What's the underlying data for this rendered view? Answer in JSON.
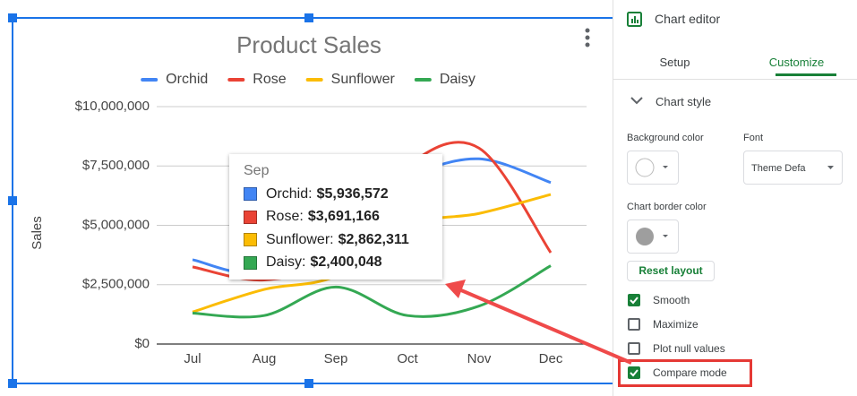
{
  "chart_data": {
    "type": "line",
    "title": "Product Sales",
    "y_label": "Sales",
    "smooth": true,
    "grid": true,
    "legend": "top",
    "categories": [
      "Jul",
      "Aug",
      "Sep",
      "Oct",
      "Nov",
      "Dec"
    ],
    "series": [
      {
        "name": "Orchid",
        "color": "#4285f4",
        "values": [
          3550000,
          3100000,
          5936572,
          7100000,
          7800000,
          6800000
        ],
        "value_labels": [
          null,
          null,
          "$5,936,572",
          null,
          null,
          null
        ]
      },
      {
        "name": "Rose",
        "color": "#ea4335",
        "values": [
          3250000,
          2700000,
          3691166,
          7500000,
          8250000,
          3850000
        ],
        "value_labels": [
          null,
          null,
          "$3,691,166",
          null,
          null,
          null
        ]
      },
      {
        "name": "Sunflower",
        "color": "#fbbc04",
        "values": [
          1350000,
          2300000,
          2862311,
          5000000,
          5500000,
          6300000
        ],
        "value_labels": [
          null,
          null,
          "$2,862,311",
          null,
          null,
          null
        ]
      },
      {
        "name": "Daisy",
        "color": "#34a853",
        "values": [
          1300000,
          1200000,
          2400048,
          1200000,
          1600000,
          3300000
        ],
        "value_labels": [
          null,
          null,
          "$2,400,048",
          null,
          null,
          null
        ]
      }
    ],
    "ylim": [
      0,
      10000000
    ],
    "yticks": [
      {
        "value": 0,
        "label": "$0"
      },
      {
        "value": 2500000,
        "label": "$2,500,000"
      },
      {
        "value": 5000000,
        "label": "$5,000,000"
      },
      {
        "value": 7500000,
        "label": "$7,500,000"
      },
      {
        "value": 10000000,
        "label": "$10,000,000"
      }
    ],
    "tooltip_category": 2
  },
  "editor": {
    "title": "Chart editor",
    "tabs": [
      "Setup",
      "Customize"
    ],
    "active_tab": 1,
    "section": "Chart style",
    "background_color_label": "Background color",
    "font_label": "Font",
    "font_value": "Theme Defa",
    "border_color_label": "Chart border color",
    "reset_button": "Reset layout",
    "checkboxes": [
      {
        "label": "Smooth",
        "checked": true
      },
      {
        "label": "Maximize",
        "checked": false
      },
      {
        "label": "Plot null values",
        "checked": false
      },
      {
        "label": "Compare mode",
        "checked": true
      }
    ],
    "highlighted_checkbox": 3
  }
}
